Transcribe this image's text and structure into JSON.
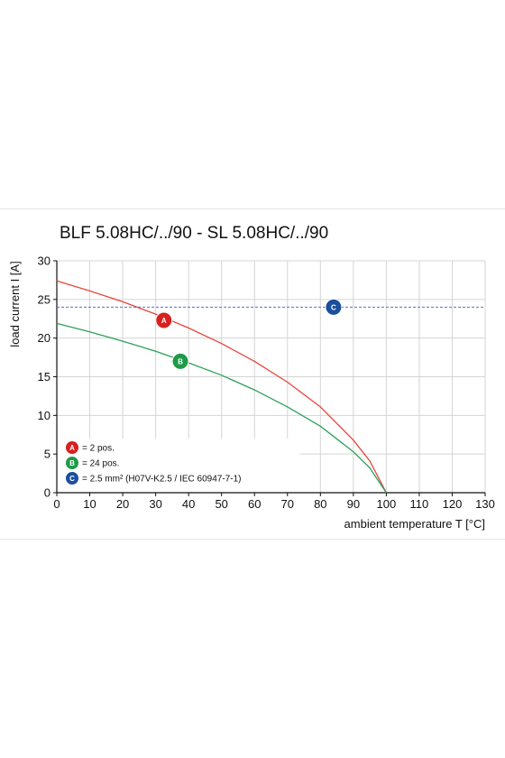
{
  "chart_data": {
    "type": "line",
    "title": "BLF 5.08HC/../90 - SL 5.08HC/../90",
    "xlabel": "ambient temperature T [°C]",
    "ylabel": "load current I [A]",
    "xlim": [
      0,
      130
    ],
    "ylim": [
      0,
      30
    ],
    "x_ticks": [
      0,
      10,
      20,
      30,
      40,
      50,
      60,
      70,
      80,
      90,
      100,
      110,
      120,
      130
    ],
    "y_ticks": [
      0,
      5,
      10,
      15,
      20,
      25,
      30
    ],
    "grid": true,
    "series": [
      {
        "name": "A",
        "color": "#e8453c",
        "x": [
          0,
          10,
          20,
          30,
          40,
          50,
          60,
          70,
          80,
          90,
          95,
          100
        ],
        "y": [
          27.4,
          26.1,
          24.7,
          23.1,
          21.3,
          19.3,
          17.0,
          14.3,
          11.1,
          6.8,
          4.1,
          0
        ]
      },
      {
        "name": "B",
        "color": "#2ea05a",
        "x": [
          0,
          10,
          20,
          30,
          40,
          50,
          60,
          70,
          80,
          90,
          95,
          100
        ],
        "y": [
          21.9,
          20.8,
          19.6,
          18.3,
          16.8,
          15.2,
          13.3,
          11.1,
          8.6,
          5.3,
          3.2,
          0
        ]
      },
      {
        "name": "C",
        "color": "#5a6ec8",
        "style": "dashed",
        "x": [
          0,
          130
        ],
        "y": [
          24,
          24
        ]
      }
    ],
    "markers": [
      {
        "letter": "A",
        "x": 32.5,
        "y": 22.3,
        "color": "#d7201f"
      },
      {
        "letter": "B",
        "x": 37.5,
        "y": 17.0,
        "color": "#1f9a48"
      },
      {
        "letter": "C",
        "x": 84.0,
        "y": 24.0,
        "color": "#1b4f9c"
      }
    ],
    "legend": {
      "placement": "bottom-left",
      "entries": [
        {
          "letter": "A",
          "color": "#d7201f",
          "text": "= 2 pos."
        },
        {
          "letter": "B",
          "color": "#1f9a48",
          "text": "= 24 pos."
        },
        {
          "letter": "C",
          "color": "#1b4f9c",
          "text": "= 2.5 mm² (H07V-K2.5 / IEC 60947-7-1)"
        }
      ]
    }
  }
}
